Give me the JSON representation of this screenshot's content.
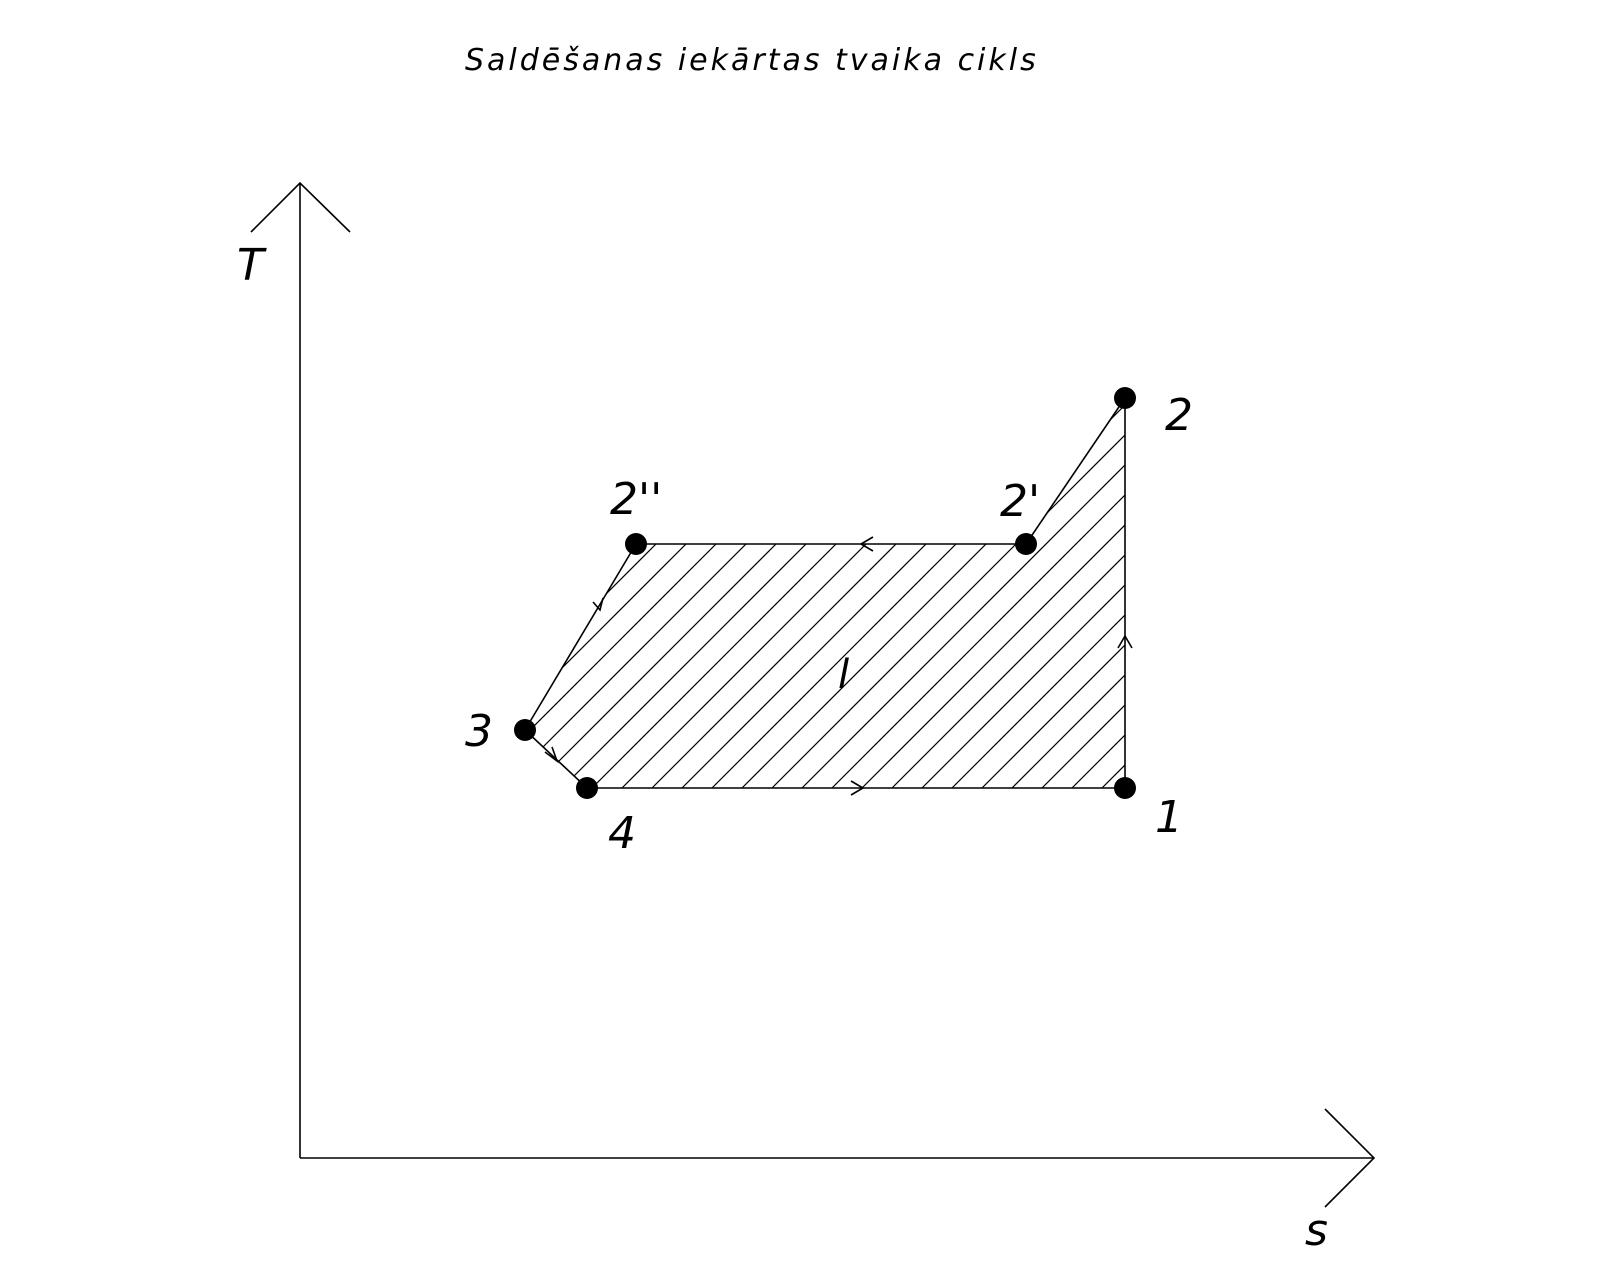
{
  "title": "Saldēšanas iekārtas tvaika cikls",
  "axes": {
    "y_label": "T",
    "x_label": "s"
  },
  "area_label": "l",
  "points": [
    {
      "id": "p1",
      "label": "1"
    },
    {
      "id": "p2",
      "label": "2"
    },
    {
      "id": "p2prime",
      "label": "2'"
    },
    {
      "id": "p2dprime",
      "label": "2''"
    },
    {
      "id": "p3",
      "label": "3"
    },
    {
      "id": "p4",
      "label": "4"
    }
  ]
}
